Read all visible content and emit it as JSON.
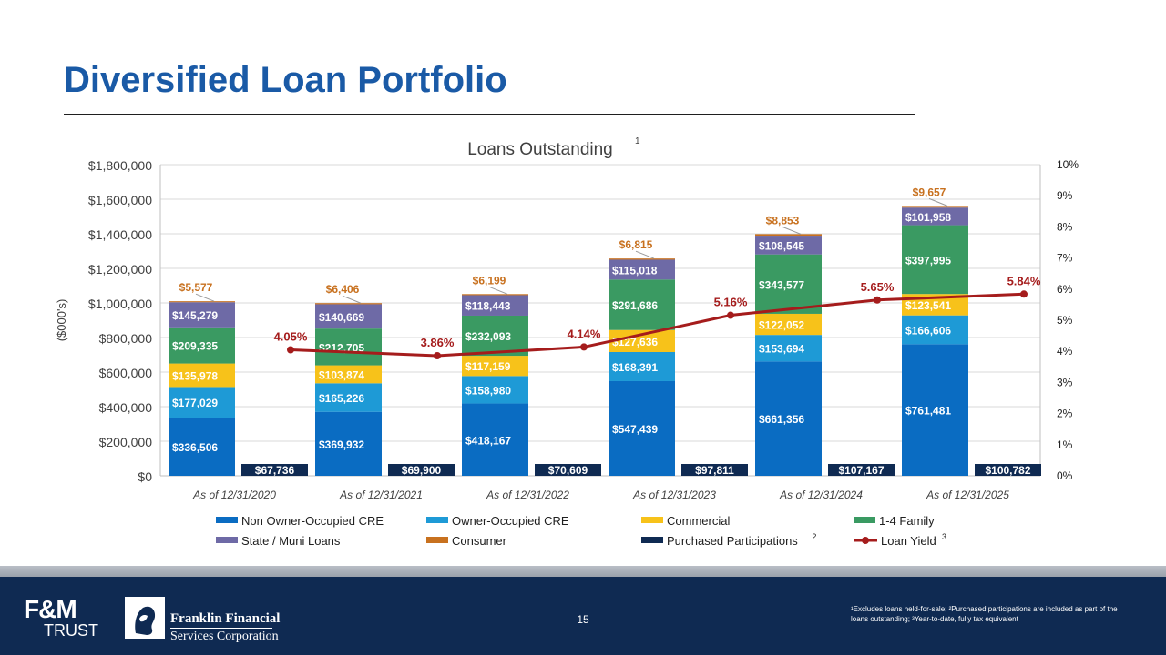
{
  "title": "Diversified Loan Portfolio",
  "colors": {
    "non_owner_cre": "#0a6cc2",
    "owner_cre": "#1e9ad6",
    "commercial": "#f7c21a",
    "one_four_family": "#3a9a62",
    "state_muni": "#6e6aa6",
    "consumer": "#c8711f",
    "purchased": "#0f2a52",
    "loan_yield": "#a51c1c",
    "title": "#1a5aa6"
  },
  "chart_data": {
    "type": "bar",
    "stacked": true,
    "title": "Loans Outstanding",
    "title_sup": "1",
    "ylabel": "($000's)",
    "ylim": [
      0,
      1800000
    ],
    "yticks": [
      "$0",
      "$200,000",
      "$400,000",
      "$600,000",
      "$800,000",
      "$1,000,000",
      "$1,200,000",
      "$1,400,000",
      "$1,600,000",
      "$1,800,000"
    ],
    "y2lim": [
      0,
      10
    ],
    "y2ticks": [
      "0%",
      "1%",
      "2%",
      "3%",
      "4%",
      "5%",
      "6%",
      "7%",
      "8%",
      "9%",
      "10%"
    ],
    "grid": true,
    "legend_position": "bottom",
    "categories": [
      "As of 12/31/2020",
      "As of 12/31/2021",
      "As of 12/31/2022",
      "As of 12/31/2023",
      "As of 12/31/2024",
      "As of 12/31/2025"
    ],
    "stack_series": [
      {
        "name": "Non Owner-Occupied CRE",
        "color_key": "non_owner_cre",
        "values": [
          336506,
          369932,
          418167,
          547439,
          661356,
          761481
        ],
        "labels": [
          "$336,506",
          "$369,932",
          "$418,167",
          "$547,439",
          "$661,356",
          "$761,481"
        ]
      },
      {
        "name": "Owner-Occupied CRE",
        "color_key": "owner_cre",
        "values": [
          177029,
          165226,
          158980,
          168391,
          153694,
          166606
        ],
        "labels": [
          "$177,029",
          "$165,226",
          "$158,980",
          "$168,391",
          "$153,694",
          "$166,606"
        ]
      },
      {
        "name": "Commercial",
        "color_key": "commercial",
        "values": [
          135978,
          103874,
          117159,
          127636,
          122052,
          123541
        ],
        "labels": [
          "$135,978",
          "$103,874",
          "$117,159",
          "$127,636",
          "$122,052",
          "$123,541"
        ]
      },
      {
        "name": "1-4 Family",
        "color_key": "one_four_family",
        "values": [
          209335,
          212705,
          232093,
          291686,
          343577,
          397995
        ],
        "labels": [
          "$209,335",
          "$212,705",
          "$232,093",
          "$291,686",
          "$343,577",
          "$397,995"
        ]
      },
      {
        "name": "State / Muni Loans",
        "color_key": "state_muni",
        "values": [
          145279,
          140669,
          118443,
          115018,
          108545,
          101958
        ],
        "labels": [
          "$145,279",
          "$140,669",
          "$118,443",
          "$115,018",
          "$108,545",
          "$101,958"
        ]
      },
      {
        "name": "Consumer",
        "color_key": "consumer",
        "values": [
          5577,
          6406,
          6199,
          6815,
          8853,
          9657
        ],
        "labels": [
          "$5,577",
          "$6,406",
          "$6,199",
          "$6,815",
          "$8,853",
          "$9,657"
        ]
      }
    ],
    "side_series": {
      "name": "Purchased Participations",
      "sup": "2",
      "color_key": "purchased",
      "values": [
        67736,
        69900,
        70609,
        97811,
        107167,
        100782
      ],
      "labels": [
        "$67,736",
        "$69,900",
        "$70,609",
        "$97,811",
        "$107,167",
        "$100,782"
      ]
    },
    "line_series": {
      "name": "Loan Yield",
      "sup": "3",
      "color_key": "loan_yield",
      "values": [
        4.05,
        3.86,
        4.14,
        5.16,
        5.65,
        5.84
      ],
      "labels": [
        "4.05%",
        "3.86%",
        "4.14%",
        "5.16%",
        "5.65%",
        "5.84%"
      ]
    }
  },
  "footer": {
    "logo_line1": "F&M",
    "logo_line2": "TRUST",
    "company_line1": "Franklin Financial",
    "company_line2": "Services Corporation",
    "page_number": "15",
    "footnote": "¹Excludes loans held-for-sale; ²Purchased participations are included as part of the loans outstanding; ³Year-to-date, fully tax equivalent"
  }
}
